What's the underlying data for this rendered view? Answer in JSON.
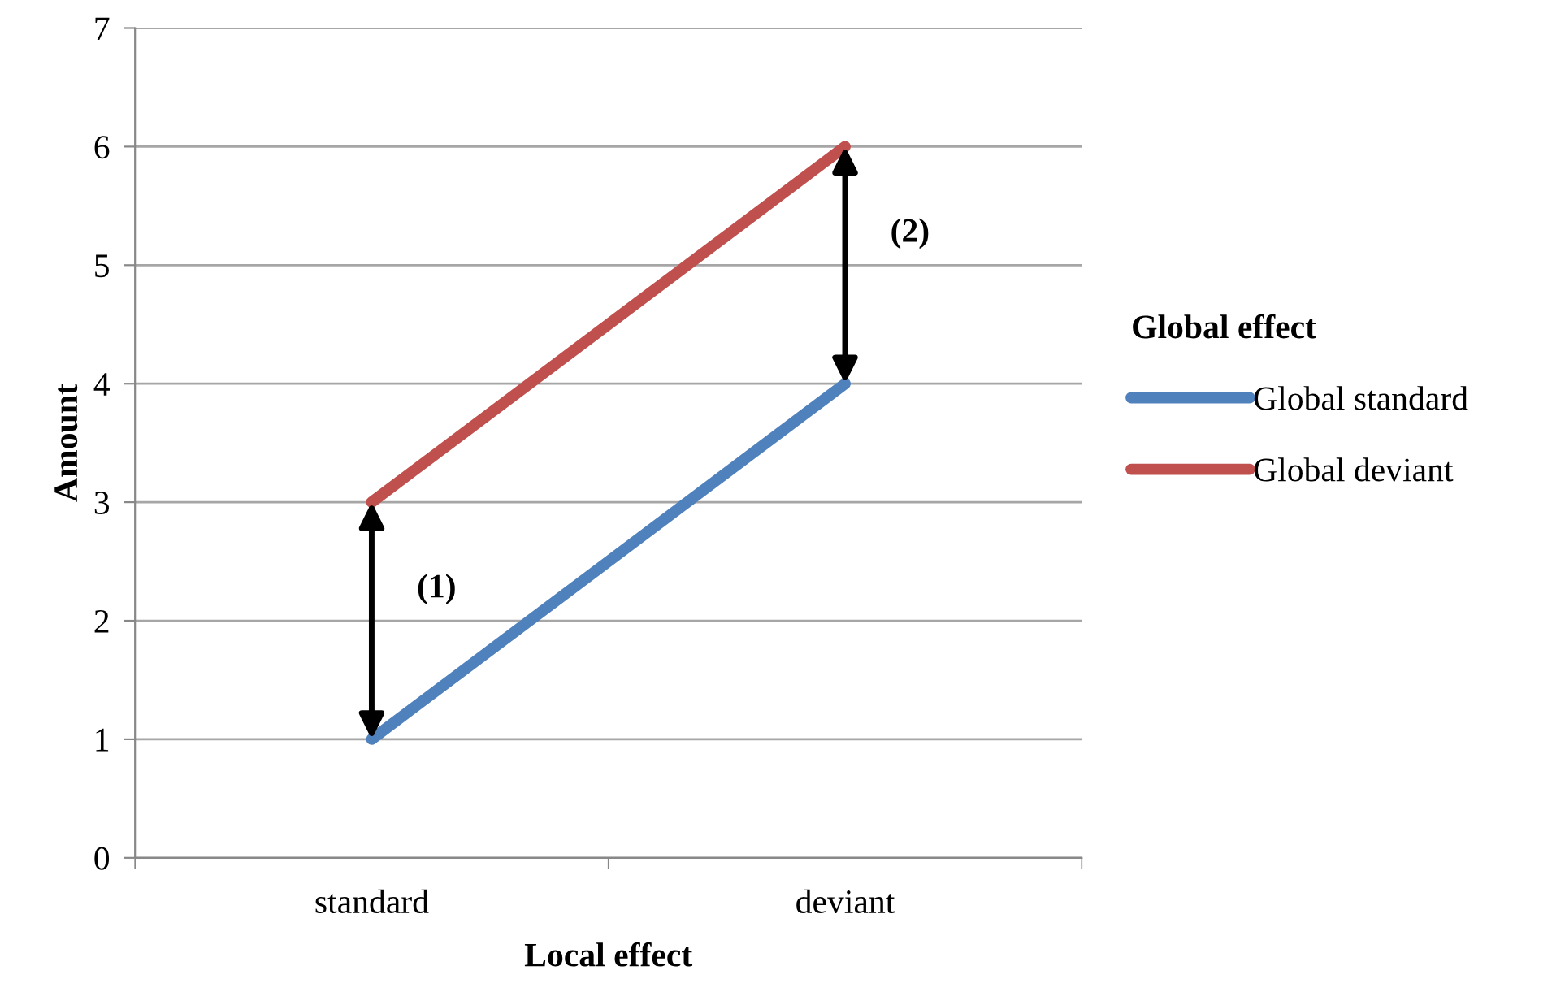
{
  "chart_data": {
    "type": "line",
    "xlabel": "Local effect",
    "ylabel": "Amount",
    "legend_title": "Global effect",
    "categories": [
      "standard",
      "deviant"
    ],
    "series": [
      {
        "name": "Global standard",
        "color": "#4f81bd",
        "values": [
          1,
          4
        ]
      },
      {
        "name": "Global deviant",
        "color": "#c0504d",
        "values": [
          3,
          6
        ]
      }
    ],
    "ylim": [
      0,
      7
    ],
    "yticks": [
      0,
      1,
      2,
      3,
      4,
      5,
      6,
      7
    ],
    "grid": "y",
    "legend": "right",
    "marker": "none",
    "line_style": "solid",
    "annotations": [
      "(1)",
      "(2)"
    ]
  }
}
